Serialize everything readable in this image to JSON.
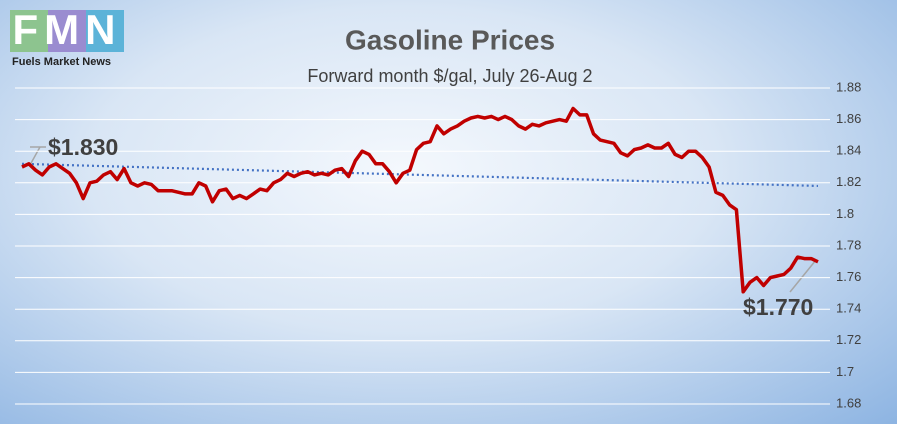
{
  "logo": {
    "text": "FMN",
    "caption": "Fuels Market News"
  },
  "chart_data": {
    "type": "line",
    "title": "Gasoline Prices",
    "subtitle": "Forward month $/gal, July 26-Aug 2",
    "series": [
      {
        "color": "#c00000",
        "values": [
          1.83,
          1.832,
          1.828,
          1.825,
          1.83,
          1.832,
          1.829,
          1.826,
          1.82,
          1.81,
          1.82,
          1.821,
          1.825,
          1.827,
          1.822,
          1.829,
          1.82,
          1.818,
          1.82,
          1.819,
          1.815,
          1.815,
          1.815,
          1.814,
          1.813,
          1.813,
          1.82,
          1.818,
          1.808,
          1.815,
          1.816,
          1.81,
          1.812,
          1.81,
          1.813,
          1.816,
          1.815,
          1.82,
          1.822,
          1.826,
          1.824,
          1.826,
          1.827,
          1.825,
          1.826,
          1.825,
          1.828,
          1.829,
          1.824,
          1.834,
          1.84,
          1.838,
          1.832,
          1.832,
          1.827,
          1.82,
          1.826,
          1.828,
          1.841,
          1.845,
          1.846,
          1.856,
          1.851,
          1.854,
          1.856,
          1.859,
          1.861,
          1.862,
          1.861,
          1.862,
          1.86,
          1.862,
          1.86,
          1.856,
          1.854,
          1.857,
          1.856,
          1.858,
          1.859,
          1.86,
          1.859,
          1.867,
          1.863,
          1.863,
          1.851,
          1.847,
          1.846,
          1.845,
          1.839,
          1.837,
          1.841,
          1.842,
          1.844,
          1.842,
          1.842,
          1.845,
          1.838,
          1.836,
          1.84,
          1.84,
          1.836,
          1.83,
          1.814,
          1.812,
          1.806,
          1.803,
          1.751,
          1.757,
          1.76,
          1.755,
          1.76,
          1.761,
          1.762,
          1.766,
          1.773,
          1.772,
          1.772,
          1.77
        ]
      }
    ],
    "trendline": {
      "color": "#4472c4",
      "values": [
        1.832,
        1.818
      ]
    },
    "annotations": [
      {
        "text": "$1.830",
        "value": 1.83,
        "point": 0
      },
      {
        "text": "$1.770",
        "value": 1.77,
        "point": 117
      }
    ],
    "ylim": [
      1.68,
      1.88
    ],
    "yticks": [
      1.68,
      1.7,
      1.72,
      1.74,
      1.76,
      1.78,
      1.8,
      1.82,
      1.84,
      1.86,
      1.88
    ],
    "grid": true
  }
}
